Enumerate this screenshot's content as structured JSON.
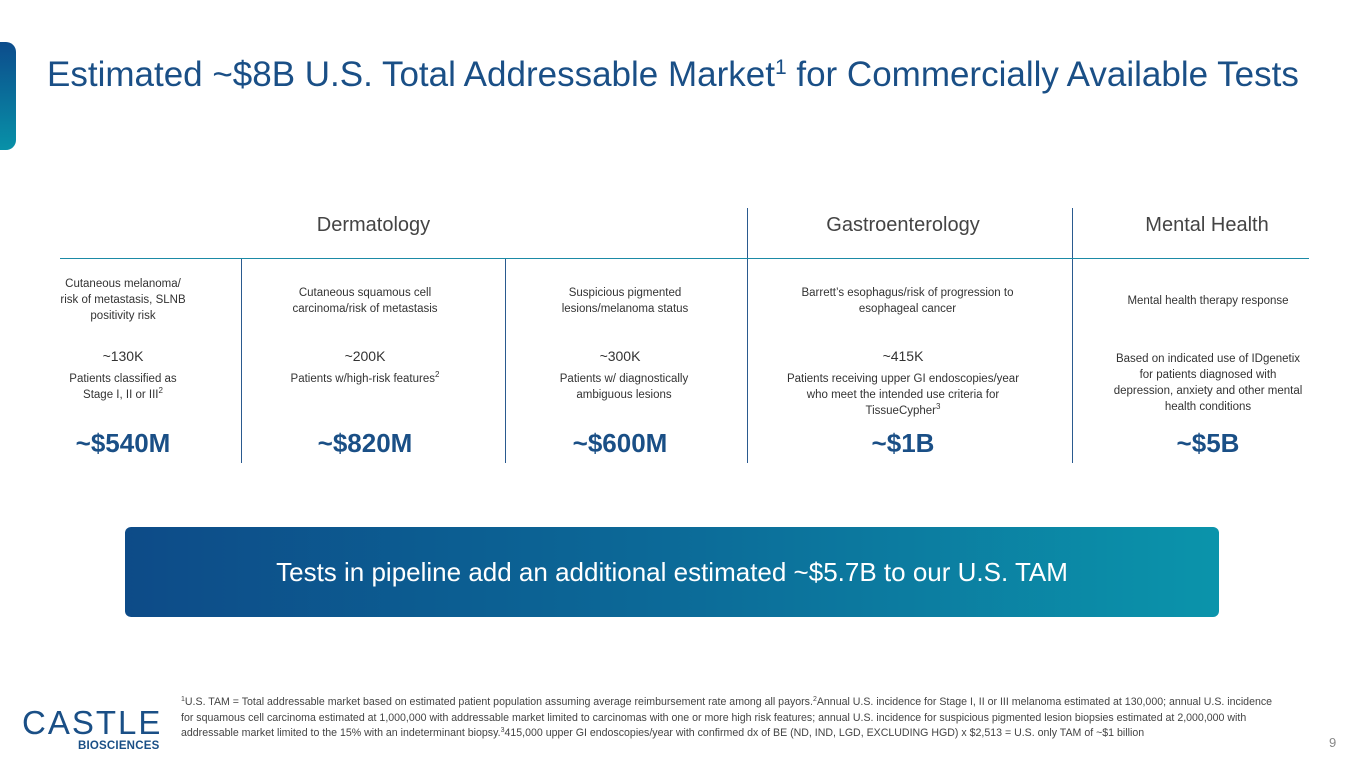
{
  "slide": {
    "title_part1": "Estimated ~$8B U.S. Total Addressable Market",
    "title_sup": "1",
    "title_part2": " for Commercially Available Tests",
    "page_number": "9"
  },
  "categories": {
    "dermatology": "Dermatology",
    "gastroenterology": "Gastroenterology",
    "mental_health": "Mental Health"
  },
  "columns": [
    {
      "desc": "Cutaneous melanoma/ risk of metastasis, SLNB positivity risk",
      "count": "~130K",
      "sub": "Patients classified as Stage I, II or III",
      "sub_sup": "2",
      "tam": "~$540M"
    },
    {
      "desc": "Cutaneous squamous cell carcinoma/risk of metastasis",
      "count": "~200K",
      "sub": "Patients w/high-risk features",
      "sub_sup": "2",
      "tam": "~$820M"
    },
    {
      "desc": "Suspicious pigmented lesions/melanoma status",
      "count": "~300K",
      "sub": "Patients w/ diagnostically ambiguous lesions",
      "sub_sup": "",
      "tam": "~$600M"
    },
    {
      "desc": "Barrett’s esophagus/risk of progression to esophageal cancer",
      "count": "~415K",
      "sub": "Patients receiving upper GI endoscopies/year who meet the intended use criteria for TissueCypher",
      "sub_sup": "3",
      "tam": "~$1B"
    },
    {
      "desc": "Mental health therapy response",
      "count": "",
      "sub": "Based on indicated use of IDgenetix for patients diagnosed with depression, anxiety and other mental health conditions",
      "sub_sup": "",
      "tam": "~$5B"
    }
  ],
  "banner": {
    "text": "Tests in pipeline add an additional estimated ~$5.7B to our U.S. TAM"
  },
  "logo": {
    "main": "CASTLE",
    "sub": "BIOSCIENCES"
  },
  "footnote": {
    "sup1": "1",
    "text1": "U.S. TAM = Total addressable market based on estimated patient population assuming average reimbursement rate among all payors.",
    "sup2": "2",
    "text2": "Annual U.S. incidence for Stage I, II or III melanoma estimated at 130,000; annual U.S. incidence for squamous cell carcinoma estimated at 1,000,000 with addressable market limited to carcinomas with one or more high risk features; annual U.S. incidence for suspicious pigmented lesion biopsies estimated at 2,000,000 with addressable market limited to the 15% with an indeterminant biopsy.",
    "sup3": "3",
    "text3": "415,000 upper GI endoscopies/year with confirmed dx of BE (ND, IND, LGD, EXCLUDING HGD) x $2,513 = U.S. only TAM of ~$1 billion"
  },
  "colors": {
    "brand_blue": "#1a4f86",
    "teal": "#0b94ab"
  }
}
